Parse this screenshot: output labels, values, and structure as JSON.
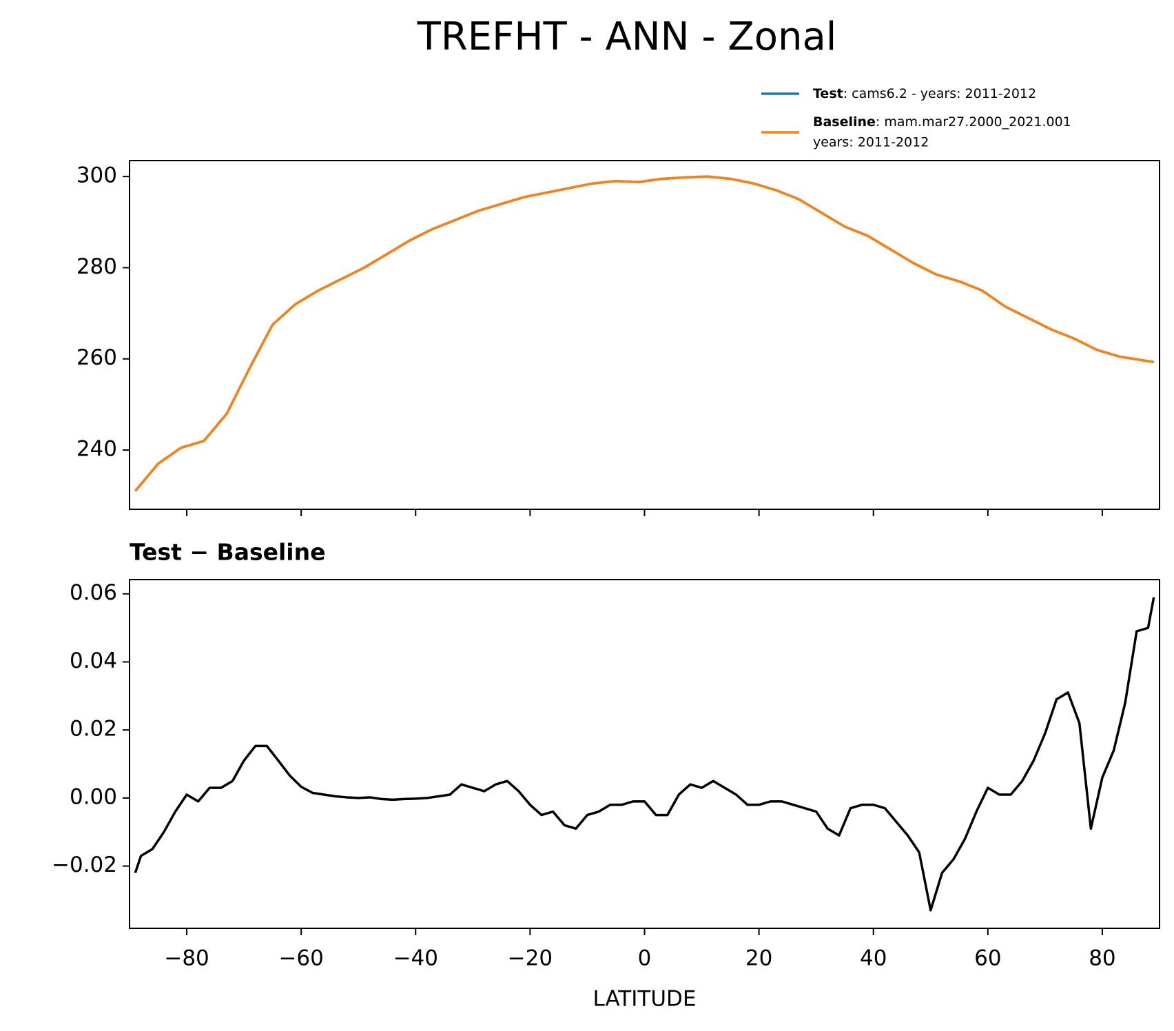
{
  "chart_data": [
    {
      "type": "line",
      "title": "TREFHT - ANN - Zonal",
      "x": [
        -89,
        -85,
        -81,
        -77,
        -73,
        -69,
        -65,
        -61,
        -57,
        -53,
        -49,
        -45,
        -41,
        -37,
        -33,
        -29,
        -25,
        -21,
        -17,
        -13,
        -9,
        -5,
        -1,
        3,
        7,
        11,
        15,
        19,
        23,
        27,
        31,
        35,
        39,
        43,
        47,
        51,
        55,
        59,
        63,
        67,
        71,
        75,
        79,
        83,
        87,
        89
      ],
      "series": [
        {
          "name": "Test",
          "label": ": cams6.2 - years: 2011-2012",
          "color": "#1f77b4",
          "values": [
            231,
            237,
            240.5,
            242,
            248,
            258,
            267.5,
            272,
            275,
            277.5,
            280,
            283,
            286,
            288.5,
            290.5,
            292.5,
            294,
            295.5,
            296.5,
            297.5,
            298.5,
            299,
            298.8,
            299.5,
            299.8,
            300,
            299.5,
            298.5,
            297,
            295,
            292,
            289,
            287,
            284,
            281,
            278.5,
            277,
            275,
            271.5,
            269,
            266.5,
            264.5,
            262,
            260.5,
            259.7,
            259.3
          ]
        },
        {
          "name": "Baseline",
          "label": [
            ": mam.mar27.2000_2021.001",
            "years: 2011-2012"
          ],
          "color": "#ff7f0e",
          "values": [
            231,
            237,
            240.5,
            242,
            248,
            258,
            267.5,
            272,
            275,
            277.5,
            280,
            283,
            286,
            288.5,
            290.5,
            292.5,
            294,
            295.5,
            296.5,
            297.5,
            298.5,
            299,
            298.8,
            299.5,
            299.8,
            300,
            299.5,
            298.5,
            297,
            295,
            292,
            289,
            287,
            284,
            281,
            278.5,
            277,
            275,
            271.5,
            269,
            266.5,
            264.5,
            262,
            260.5,
            259.7,
            259.3
          ]
        }
      ],
      "xlim": [
        -90,
        90
      ],
      "xticks": [
        -80,
        -60,
        -40,
        -20,
        0,
        20,
        40,
        60,
        80
      ],
      "xticklabels": false,
      "ylim": [
        227,
        303.5
      ],
      "yticks": [
        240,
        260,
        280,
        300
      ],
      "legend": "upper right outside"
    },
    {
      "type": "line",
      "title": "Test − Baseline",
      "xlabel": "LATITUDE",
      "x": [
        -89,
        -88,
        -86,
        -84,
        -82,
        -80,
        -78,
        -76,
        -74,
        -72,
        -70,
        -68,
        -66,
        -64,
        -62,
        -60,
        -58,
        -56,
        -54,
        -52,
        -50,
        -48,
        -46,
        -44,
        -42,
        -40,
        -38,
        -36,
        -34,
        -32,
        -30,
        -28,
        -26,
        -24,
        -22,
        -20,
        -18,
        -16,
        -14,
        -12,
        -10,
        -8,
        -6,
        -4,
        -2,
        0,
        2,
        4,
        6,
        8,
        10,
        12,
        14,
        16,
        18,
        20,
        22,
        24,
        26,
        28,
        30,
        32,
        34,
        36,
        38,
        40,
        42,
        44,
        46,
        48,
        50,
        52,
        54,
        56,
        58,
        60,
        62,
        64,
        66,
        68,
        70,
        72,
        74,
        76,
        78,
        80,
        82,
        84,
        86,
        88,
        89
      ],
      "series": [
        {
          "name": "Test − Baseline",
          "color": "#000000",
          "values": [
            -0.022,
            -0.017,
            -0.015,
            -0.01,
            -0.004,
            0.001,
            -0.001,
            0.003,
            0.003,
            0.005,
            0.011,
            0.0153,
            0.0153,
            0.011,
            0.0066,
            0.0033,
            0.0015,
            0.001,
            0.0005,
            0.0002,
            0,
            0.0002,
            -0.0003,
            -0.0005,
            -0.0003,
            -0.0002,
            0,
            0.0005,
            0.001,
            0.004,
            0.003,
            0.002,
            0.004,
            0.005,
            0.002,
            -0.002,
            -0.005,
            -0.004,
            -0.008,
            -0.009,
            -0.005,
            -0.004,
            -0.002,
            -0.002,
            -0.001,
            -0.001,
            -0.005,
            -0.005,
            0.001,
            0.004,
            0.003,
            0.005,
            0.003,
            0.001,
            -0.002,
            -0.002,
            -0.001,
            -0.001,
            -0.002,
            -0.003,
            -0.004,
            -0.009,
            -0.011,
            -0.003,
            -0.002,
            -0.002,
            -0.003,
            -0.007,
            -0.011,
            -0.016,
            -0.033,
            -0.022,
            -0.018,
            -0.012,
            -0.004,
            0.003,
            0.001,
            0.001,
            0.005,
            0.011,
            0.019,
            0.029,
            0.031,
            0.022,
            -0.009,
            0.006,
            0.014,
            0.028,
            0.049,
            0.05,
            0.059
          ]
        }
      ],
      "xlim": [
        -90,
        90
      ],
      "xticks": [
        {
          "value": -80,
          "label": "−80"
        },
        {
          "value": -60,
          "label": "−60"
        },
        {
          "value": -40,
          "label": "−40"
        },
        {
          "value": -20,
          "label": "−20"
        },
        0,
        20,
        40,
        60,
        80
      ],
      "xticklabels": true,
      "ylim": [
        -0.0383,
        0.0642
      ],
      "yticks": [
        {
          "value": -0.02,
          "label": "−0.02"
        },
        {
          "value": 0,
          "label": "0.00"
        },
        0.02,
        0.04,
        0.06
      ]
    }
  ]
}
